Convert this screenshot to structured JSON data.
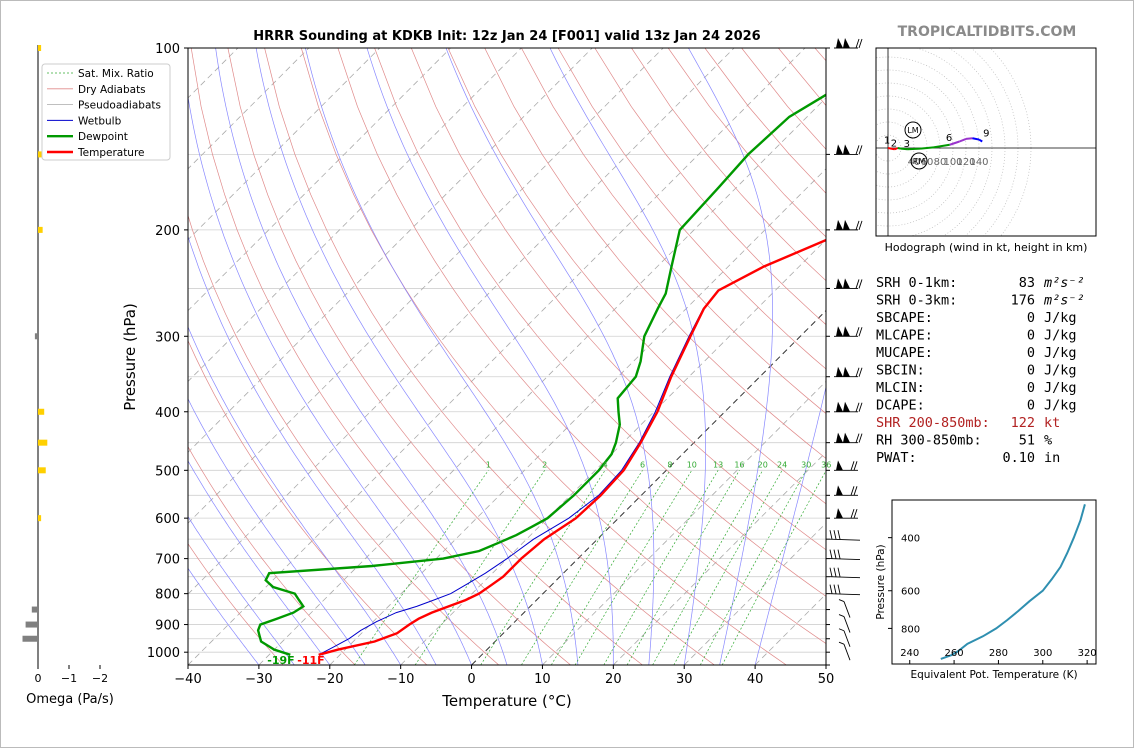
{
  "brand": "TROPICALTIDBITS.COM",
  "chart_data": {
    "type": "sounding",
    "title": "HRRR Sounding at KDKB Init: 12z Jan 24 [F001] valid 13z Jan 24 2026",
    "xlabel": "Temperature (°C)",
    "ylabel": "Pressure (hPa)",
    "xlim": [
      -40,
      50
    ],
    "ylim": [
      1050,
      100
    ],
    "x_ticks": [
      "−40",
      "−30",
      "−20",
      "−10",
      "0",
      "10",
      "20",
      "30",
      "40",
      "50"
    ],
    "y_ticks": [
      "100",
      "200",
      "300",
      "400",
      "500",
      "600",
      "700",
      "800",
      "900",
      "1000"
    ],
    "legend": [
      "Sat. Mix. Ratio",
      "Dry Adiabats",
      "Pseudoadiabats",
      "Wetbulb",
      "Dewpoint",
      "Temperature"
    ],
    "legend_position": "top-left",
    "mixing_ratio_labels": [
      "1",
      "2",
      "4",
      "6",
      "8",
      "10",
      "13",
      "16",
      "20",
      "24",
      "30",
      "36"
    ],
    "temperature_profile": [
      [
        1010,
        -23
      ],
      [
        990,
        -21
      ],
      [
        960,
        -17
      ],
      [
        930,
        -15
      ],
      [
        900,
        -14.5
      ],
      [
        880,
        -14
      ],
      [
        860,
        -13
      ],
      [
        840,
        -11.5
      ],
      [
        820,
        -10
      ],
      [
        800,
        -9
      ],
      [
        775,
        -8.5
      ],
      [
        750,
        -8
      ],
      [
        700,
        -8
      ],
      [
        650,
        -7.5
      ],
      [
        600,
        -6
      ],
      [
        550,
        -5.7
      ],
      [
        500,
        -6
      ],
      [
        450,
        -7.5
      ],
      [
        400,
        -9.5
      ],
      [
        350,
        -12.5
      ],
      [
        300,
        -15.5
      ],
      [
        270,
        -17.5
      ],
      [
        252,
        -18
      ],
      [
        230,
        -15
      ],
      [
        200,
        -8
      ],
      [
        170,
        -3
      ],
      [
        150,
        -1
      ],
      [
        130,
        0
      ],
      [
        100,
        0.5
      ]
    ],
    "dewpoint_profile": [
      [
        1010,
        -27
      ],
      [
        990,
        -30
      ],
      [
        960,
        -33
      ],
      [
        940,
        -34
      ],
      [
        920,
        -35
      ],
      [
        900,
        -35.5
      ],
      [
        880,
        -34
      ],
      [
        860,
        -32.5
      ],
      [
        840,
        -32
      ],
      [
        820,
        -33.5
      ],
      [
        800,
        -35
      ],
      [
        780,
        -39
      ],
      [
        760,
        -41
      ],
      [
        740,
        -41.5
      ],
      [
        720,
        -28
      ],
      [
        700,
        -19
      ],
      [
        680,
        -15
      ],
      [
        660,
        -13.5
      ],
      [
        640,
        -12
      ],
      [
        620,
        -11
      ],
      [
        600,
        -10
      ],
      [
        550,
        -9.5
      ],
      [
        500,
        -9.5
      ],
      [
        470,
        -10
      ],
      [
        450,
        -11
      ],
      [
        420,
        -13
      ],
      [
        400,
        -15
      ],
      [
        380,
        -17
      ],
      [
        350,
        -17.5
      ],
      [
        330,
        -19
      ],
      [
        300,
        -22
      ],
      [
        270,
        -24
      ],
      [
        255,
        -25
      ],
      [
        230,
        -28
      ],
      [
        200,
        -32
      ],
      [
        170,
        -32.5
      ],
      [
        150,
        -33
      ],
      [
        130,
        -32.5
      ],
      [
        100,
        -26
      ]
    ],
    "wetbulb_profile": [
      [
        1010,
        -23
      ],
      [
        980,
        -22
      ],
      [
        950,
        -21
      ],
      [
        920,
        -20.5
      ],
      [
        890,
        -19.5
      ],
      [
        860,
        -18
      ],
      [
        840,
        -16
      ],
      [
        820,
        -14.5
      ],
      [
        800,
        -13
      ],
      [
        770,
        -12
      ],
      [
        740,
        -11
      ],
      [
        700,
        -10
      ],
      [
        650,
        -9
      ],
      [
        600,
        -7
      ],
      [
        550,
        -6
      ],
      [
        500,
        -6.3
      ],
      [
        450,
        -7.7
      ],
      [
        400,
        -9.8
      ],
      [
        350,
        -12.7
      ],
      [
        300,
        -15.7
      ],
      [
        270,
        -17.6
      ],
      [
        252,
        -18
      ],
      [
        230,
        -15
      ],
      [
        200,
        -8
      ],
      [
        170,
        -3
      ],
      [
        150,
        -1
      ],
      [
        130,
        0
      ],
      [
        100,
        0.5
      ]
    ],
    "surface_labels": {
      "dewpoint": "-19F",
      "temperature": "-11F"
    },
    "omega": {
      "xlabel": "Omega (Pa/s)",
      "x_ticks": [
        "0",
        "−1",
        "−2"
      ],
      "bars": [
        [
          100,
          -0.1
        ],
        [
          150,
          -0.25
        ],
        [
          200,
          -0.15
        ],
        [
          300,
          0.1
        ],
        [
          400,
          -0.2
        ],
        [
          450,
          -0.3
        ],
        [
          500,
          -0.25
        ],
        [
          600,
          -0.1
        ],
        [
          850,
          0.2
        ],
        [
          900,
          0.4
        ],
        [
          950,
          0.5
        ]
      ]
    },
    "hodograph": {
      "caption": "Hodograph (wind in kt, height in km)",
      "ring_labels": [
        "40",
        "60",
        "80",
        "100",
        "120",
        "140"
      ],
      "height_labels": [
        "1",
        "2",
        "3",
        "6",
        "9"
      ],
      "markers": [
        "LM",
        "RM"
      ],
      "trace": [
        [
          0,
          0
        ],
        [
          10,
          -2
        ],
        [
          15,
          0
        ],
        [
          20,
          -1
        ],
        [
          30,
          -2
        ],
        [
          50,
          -1
        ],
        [
          70,
          1
        ],
        [
          95,
          5
        ],
        [
          110,
          10
        ],
        [
          120,
          14
        ],
        [
          130,
          15
        ],
        [
          140,
          13
        ],
        [
          145,
          10
        ]
      ]
    },
    "parameters": [
      {
        "label": "SRH 0-1km:",
        "value": "83",
        "unit": "m²s⁻²"
      },
      {
        "label": "SRH 0-3km:",
        "value": "176",
        "unit": "m²s⁻²"
      },
      {
        "label": "SBCAPE:",
        "value": "0",
        "unit": "J/kg"
      },
      {
        "label": "MLCAPE:",
        "value": "0",
        "unit": "J/kg"
      },
      {
        "label": "MUCAPE:",
        "value": "0",
        "unit": "J/kg"
      },
      {
        "label": "SBCIN:",
        "value": "0",
        "unit": "J/kg"
      },
      {
        "label": "MLCIN:",
        "value": "0",
        "unit": "J/kg"
      },
      {
        "label": "DCAPE:",
        "value": "0",
        "unit": "J/kg"
      },
      {
        "label": "SHR 200-850mb:",
        "value": "122",
        "unit": "kt",
        "color": "#b22222"
      },
      {
        "label": "RH 300-850mb:",
        "value": "51",
        "unit": "%"
      },
      {
        "label": "PWAT:",
        "value": "0.10",
        "unit": "in"
      }
    ],
    "theta_e": {
      "xlabel": "Equivalent Pot. Temperature (K)",
      "ylabel": "Pressure (hPa)",
      "x_ticks": [
        "240",
        "260",
        "280",
        "300",
        "320"
      ],
      "y_ticks": [
        "400",
        "600",
        "800"
      ],
      "xlim": [
        232,
        324
      ],
      "ylim": [
        1050,
        300
      ],
      "profile": [
        [
          1010,
          254
        ],
        [
          980,
          259
        ],
        [
          950,
          262
        ],
        [
          900,
          266
        ],
        [
          850,
          273
        ],
        [
          800,
          279
        ],
        [
          750,
          284
        ],
        [
          700,
          289
        ],
        [
          650,
          294
        ],
        [
          600,
          300
        ],
        [
          550,
          304
        ],
        [
          500,
          308
        ],
        [
          450,
          311
        ],
        [
          400,
          314
        ],
        [
          350,
          317
        ],
        [
          310,
          319
        ]
      ]
    }
  },
  "colors": {
    "temperature": "#ff0000",
    "dewpoint": "#009900",
    "wetbulb": "#0000cc",
    "dry_adiabat": "#e08a8a",
    "pseudoadiabat": "#8888ff",
    "mixing_ratio": "#33aa33",
    "theta_e": "#2f8fb0",
    "omega_up": "#ffd000",
    "omega_down": "#808080"
  }
}
